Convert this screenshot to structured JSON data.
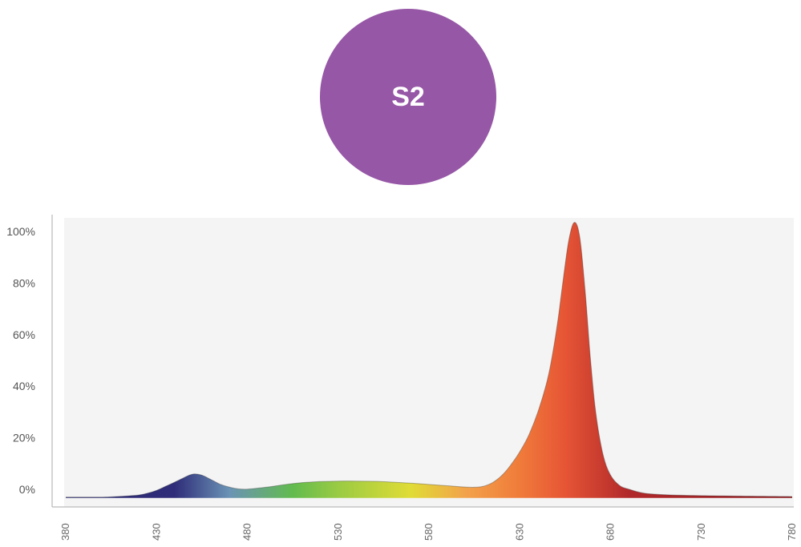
{
  "badge": {
    "label": "S2",
    "color": "#9657a6"
  },
  "chart_data": {
    "type": "area",
    "title": "",
    "xlabel": "",
    "ylabel": "",
    "x_ticks": [
      "380",
      "430",
      "480",
      "530",
      "580",
      "630",
      "680",
      "730",
      "780"
    ],
    "y_ticks": [
      "0%",
      "20%",
      "40%",
      "60%",
      "80%",
      "100%"
    ],
    "xlim": [
      380,
      780
    ],
    "ylim": [
      0,
      100
    ],
    "grid": false,
    "plot_background": "#f4f4f4",
    "axis_color": "#aaaaaa",
    "series": [
      {
        "x": [
          370,
          400,
          410,
          420,
          425,
          430,
          435,
          440,
          445,
          448,
          451,
          455,
          460,
          465,
          470,
          475,
          480,
          490,
          500,
          510,
          520,
          530,
          540,
          550,
          560,
          570,
          580,
          590,
          600,
          605,
          610,
          615,
          620,
          625,
          630,
          635,
          640,
          645,
          648,
          651,
          654,
          657,
          660,
          663,
          666,
          669,
          672,
          676,
          680,
          685,
          690,
          700,
          720,
          750,
          780
        ],
        "y": [
          -3,
          -3,
          -2.7,
          -2.2,
          -1.5,
          -0.4,
          1.2,
          2.8,
          4.5,
          5.5,
          6.0,
          5.5,
          3.8,
          2.0,
          0.9,
          0.2,
          0.1,
          0.8,
          1.8,
          2.6,
          3.0,
          3.2,
          3.2,
          3.1,
          2.8,
          2.4,
          1.9,
          1.4,
          0.9,
          0.8,
          1.2,
          2.6,
          5.3,
          9.4,
          14.6,
          21.1,
          30.1,
          41.9,
          52.3,
          65.6,
          81.8,
          96.6,
          103.5,
          98.0,
          77.0,
          50.0,
          29.0,
          13.1,
          5.5,
          1.5,
          0.1,
          -1.6,
          -2.3,
          -2.6,
          -2.8
        ]
      }
    ],
    "color_stops": [
      {
        "nm": 380,
        "color": "#2c2a72"
      },
      {
        "nm": 440,
        "color": "#2f2d79"
      },
      {
        "nm": 470,
        "color": "#6a93b5"
      },
      {
        "nm": 505,
        "color": "#62bb4e"
      },
      {
        "nm": 530,
        "color": "#9acb43"
      },
      {
        "nm": 570,
        "color": "#e0dc36"
      },
      {
        "nm": 600,
        "color": "#f2a34a"
      },
      {
        "nm": 630,
        "color": "#f07b3a"
      },
      {
        "nm": 655,
        "color": "#e65535"
      },
      {
        "nm": 690,
        "color": "#b1282a"
      },
      {
        "nm": 780,
        "color": "#8e1f23"
      }
    ]
  }
}
